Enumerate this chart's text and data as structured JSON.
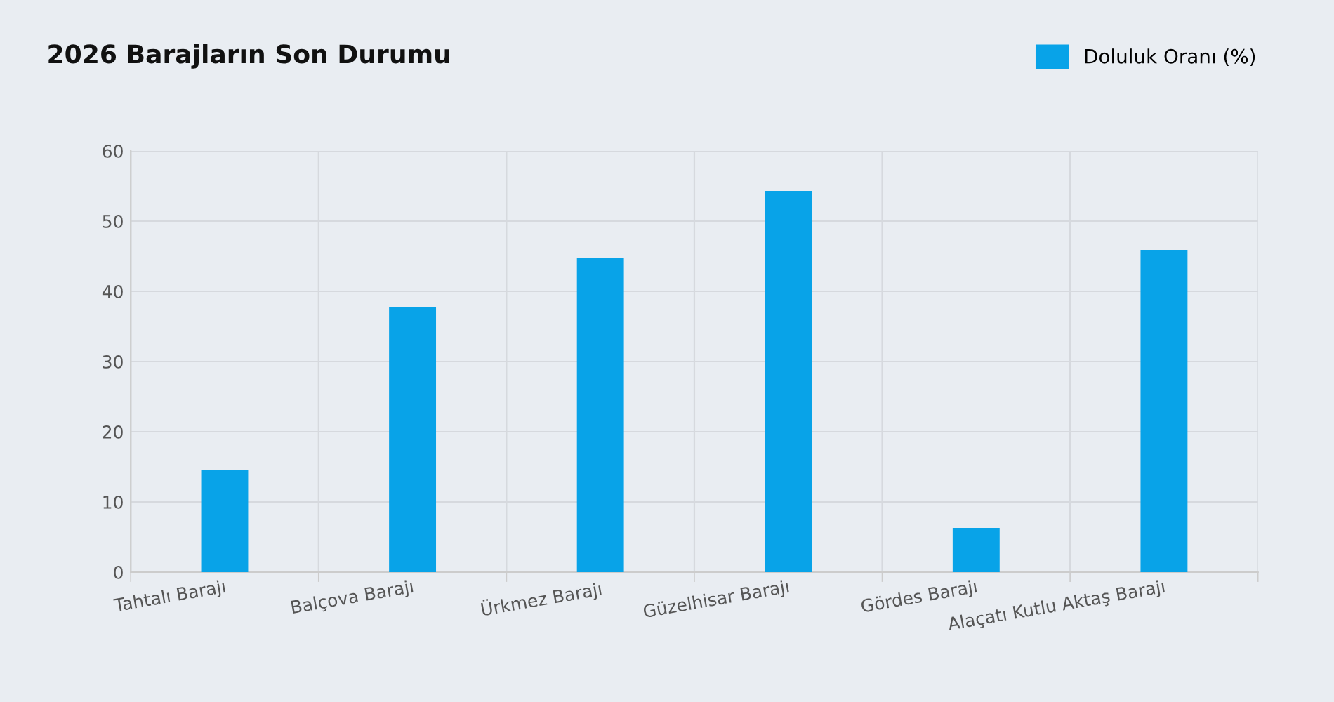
{
  "chart_data": {
    "type": "bar",
    "title": "2026 Barajların Son Durumu",
    "categories": [
      "Tahtalı Barajı",
      "Balçova Barajı",
      "Ürkmez Barajı",
      "Güzelhisar Barajı",
      "Gördes Barajı",
      "Alaçatı Kutlu Aktaş Barajı"
    ],
    "series": [
      {
        "name": "Doluluk Oranı (%)",
        "color": "#08a3e8",
        "values": [
          14.5,
          37.8,
          44.7,
          54.3,
          6.3,
          45.9
        ]
      }
    ],
    "ylim": [
      0,
      60
    ],
    "yticks": [
      0,
      10,
      20,
      30,
      40,
      50,
      60
    ],
    "grid": true,
    "legend": "top right"
  }
}
